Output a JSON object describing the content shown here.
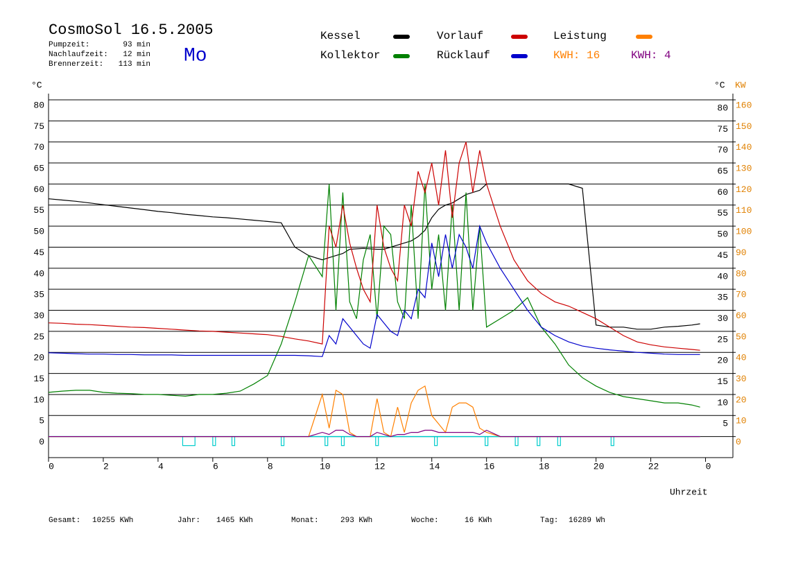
{
  "chart_data": {
    "type": "line",
    "title": "CosmoSol 16.5.2005",
    "info": [
      {
        "label": "Pumpzeit:",
        "value": "93 min"
      },
      {
        "label": "Nachlaufzeit:",
        "value": "12 min"
      },
      {
        "label": "Brennerzeit:",
        "value": "113 min"
      }
    ],
    "weekday": "Mo",
    "y_unit": "°C",
    "y2_unit": "KW",
    "xlabel": "Uhrzeit",
    "x": [
      0,
      0.5,
      1,
      1.5,
      2,
      2.5,
      3,
      3.5,
      4,
      4.5,
      5,
      5.5,
      6,
      6.5,
      7,
      7.5,
      8,
      8.5,
      9,
      9.5,
      10,
      10.25,
      10.5,
      10.75,
      11,
      11.25,
      11.5,
      11.75,
      12,
      12.25,
      12.5,
      12.75,
      13,
      13.25,
      13.5,
      13.75,
      14,
      14.25,
      14.5,
      14.75,
      15,
      15.25,
      15.5,
      15.75,
      16,
      16.5,
      17,
      17.5,
      18,
      18.5,
      19,
      19.5,
      20,
      20.5,
      21,
      21.5,
      22,
      22.5,
      23,
      23.5,
      23.8
    ],
    "xlim": [
      0,
      25
    ],
    "xticks": [
      0,
      2,
      4,
      6,
      8,
      10,
      12,
      14,
      16,
      18,
      20,
      22,
      {
        "value": 24,
        "label": "0"
      }
    ],
    "ylim": [
      -5,
      80
    ],
    "yticks": [
      0,
      5,
      10,
      15,
      20,
      25,
      30,
      35,
      40,
      45,
      50,
      55,
      60,
      65,
      70,
      75,
      80
    ],
    "y2lim": [
      -10,
      160
    ],
    "y2ticks": [
      0,
      10,
      20,
      30,
      40,
      50,
      60,
      70,
      80,
      90,
      100,
      110,
      120,
      130,
      140,
      150,
      160
    ],
    "grid": true,
    "series": [
      {
        "name": "Kessel",
        "color": "#000000",
        "values": [
          56.5,
          56.2,
          55.9,
          55.5,
          55.1,
          54.7,
          54.3,
          53.9,
          53.5,
          53.2,
          52.8,
          52.5,
          52.2,
          52,
          51.7,
          51.4,
          51.1,
          50.8,
          45,
          43,
          42,
          42.5,
          43,
          43.5,
          44.5,
          44.6,
          44.7,
          44.6,
          44.5,
          44.5,
          45,
          45.5,
          46,
          46.5,
          47.5,
          49,
          52,
          54,
          55,
          55.5,
          56.5,
          57.5,
          58,
          58.5,
          60,
          60,
          60,
          60,
          60,
          60,
          60,
          59,
          26.5,
          26,
          26,
          25.5,
          25.5,
          26,
          26.2,
          26.5,
          26.8
        ]
      },
      {
        "name": "Kollektor",
        "color": "#008000",
        "values": [
          10.5,
          10.8,
          11,
          11,
          10.5,
          10.3,
          10.2,
          10,
          10,
          9.8,
          9.6,
          10,
          10,
          10.3,
          10.8,
          12.5,
          14.5,
          22,
          32,
          43,
          38,
          60,
          30,
          58,
          32,
          28,
          42,
          48,
          28,
          50,
          48,
          32,
          28,
          55,
          28,
          60,
          35,
          48,
          30,
          55,
          30,
          58,
          30,
          50,
          26,
          28,
          30,
          33,
          26,
          22,
          17,
          14,
          12,
          10.5,
          9.5,
          9,
          8.5,
          8,
          8,
          7.5,
          7
        ]
      },
      {
        "name": "Vorlauf",
        "color": "#cc0000",
        "values": [
          27,
          26.9,
          26.7,
          26.6,
          26.4,
          26.2,
          26,
          25.9,
          25.7,
          25.5,
          25.3,
          25.1,
          25,
          24.8,
          24.6,
          24.4,
          24.2,
          23.8,
          23.2,
          22.7,
          22,
          50,
          45,
          55,
          46,
          40,
          35,
          32,
          55,
          45,
          40,
          37,
          55,
          50,
          63,
          58,
          65,
          55,
          68,
          52,
          65,
          70,
          58,
          68,
          60,
          50,
          42,
          37,
          34,
          32,
          31,
          29.5,
          28,
          26,
          24,
          22.5,
          21.8,
          21.3,
          21,
          20.7,
          20.5
        ]
      },
      {
        "name": "Rücklauf",
        "color": "#0000cc",
        "values": [
          19.9,
          19.8,
          19.7,
          19.6,
          19.6,
          19.5,
          19.5,
          19.4,
          19.4,
          19.4,
          19.3,
          19.3,
          19.3,
          19.3,
          19.3,
          19.3,
          19.3,
          19.3,
          19.3,
          19.2,
          19,
          24,
          22,
          28,
          26,
          24,
          22,
          21,
          29,
          27,
          25,
          24,
          30,
          28,
          35,
          33,
          46,
          38,
          48,
          40,
          48,
          45,
          40,
          50,
          46,
          40,
          35,
          30,
          26,
          24,
          22.5,
          21.5,
          21,
          20.6,
          20.3,
          20,
          19.8,
          19.6,
          19.5,
          19.5,
          19.5
        ]
      },
      {
        "name": "Leistung",
        "color": "#ff8000",
        "axis": "y2",
        "values": [
          0,
          0,
          0,
          0,
          0,
          0,
          0,
          0,
          0,
          0,
          0,
          0,
          0,
          0,
          0,
          0,
          0,
          0,
          0,
          0,
          20,
          4,
          22,
          20,
          2,
          0,
          0,
          0,
          18,
          2,
          0,
          14,
          2,
          16,
          22,
          24,
          10,
          6,
          2,
          14,
          16,
          16,
          14,
          4,
          2,
          0,
          0,
          0,
          0,
          0,
          0,
          0,
          0,
          0,
          0,
          0,
          0,
          0,
          0,
          0,
          0
        ]
      },
      {
        "color": "#800080",
        "axis": "y2",
        "values": [
          0,
          0,
          0,
          0,
          0,
          0,
          0,
          0,
          0,
          0,
          0,
          0,
          0,
          0,
          0,
          0,
          0,
          0,
          0,
          0,
          2,
          1,
          3,
          3,
          1,
          0,
          0,
          0,
          2,
          1,
          0,
          1,
          1,
          2,
          2,
          3,
          3,
          2,
          2,
          2,
          2,
          2,
          2,
          1,
          3,
          0,
          0,
          0,
          0,
          0,
          0,
          0,
          0,
          0,
          0,
          0,
          0,
          0,
          0,
          0,
          0
        ]
      }
    ],
    "kwh_labels": [
      {
        "text": "KWH: 16",
        "color": "#ff8000"
      },
      {
        "text": "KWH: 4",
        "color": "#800080"
      }
    ],
    "pump_color": "#00cccc",
    "pump_on": [
      [
        4.9,
        5.35
      ],
      [
        6,
        6.1
      ],
      [
        6.7,
        6.8
      ],
      [
        8.5,
        8.6
      ],
      [
        10.1,
        10.2
      ],
      [
        10.7,
        10.8
      ],
      [
        11.95,
        12.05
      ],
      [
        14.1,
        14.2
      ],
      [
        15.95,
        16.05
      ],
      [
        17.05,
        17.15
      ],
      [
        17.85,
        17.95
      ],
      [
        18.6,
        18.7
      ],
      [
        20.55,
        20.65
      ]
    ],
    "footer": [
      {
        "label": "Gesamt:",
        "value": "10255 KWh"
      },
      {
        "label": "Jahr:",
        "value": "1465 KWh"
      },
      {
        "label": "Monat:",
        "value": "293 KWh"
      },
      {
        "label": "Woche:",
        "value": "16 KWh"
      },
      {
        "label": "Tag:",
        "value": "16289 Wh"
      }
    ]
  }
}
